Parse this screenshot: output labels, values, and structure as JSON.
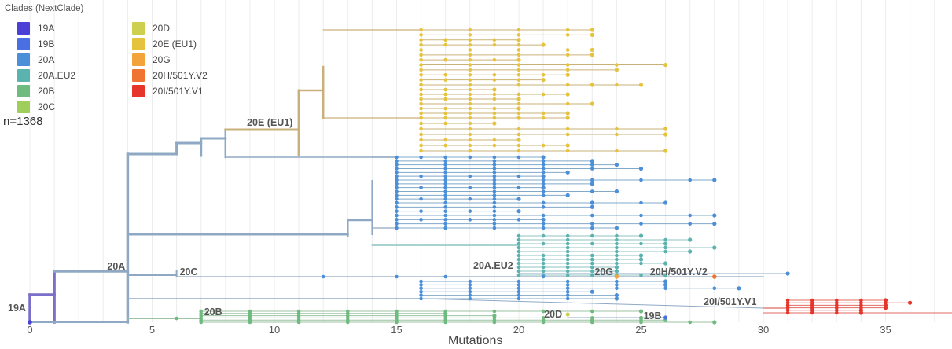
{
  "chart_data": {
    "type": "phylogenetic-tree",
    "title": "",
    "xlabel": "Mutations",
    "ylabel": "",
    "xlim": [
      0,
      38
    ],
    "x_ticks": [
      0,
      5,
      10,
      15,
      20,
      25,
      30,
      35
    ],
    "grid": "vertical",
    "sample_size_label": "n=1368",
    "legend": {
      "title": "Clades (NextClade)",
      "placement": "top-left",
      "items": [
        {
          "name": "19A",
          "color": "#4a3fd6"
        },
        {
          "name": "19B",
          "color": "#4a6fe3"
        },
        {
          "name": "20A",
          "color": "#4a8fd8"
        },
        {
          "name": "20A.EU2",
          "color": "#5bb3b0"
        },
        {
          "name": "20B",
          "color": "#6fba7e"
        },
        {
          "name": "20C",
          "color": "#9fce5c"
        },
        {
          "name": "20D",
          "color": "#cdd04f"
        },
        {
          "name": "20E (EU1)",
          "color": "#e6c33d"
        },
        {
          "name": "20G",
          "color": "#f2a33a"
        },
        {
          "name": "20H/501Y.V2",
          "color": "#ef7431"
        },
        {
          "name": "20I/501Y.V1",
          "color": "#e6352b"
        }
      ]
    },
    "clade_labels": [
      {
        "text": "19A",
        "x": 0
      },
      {
        "text": "20A",
        "x": 4
      },
      {
        "text": "20C",
        "x": 6
      },
      {
        "text": "20B",
        "x": 7
      },
      {
        "text": "20E (EU1)",
        "x": 11
      },
      {
        "text": "20A.EU2",
        "x": 20
      },
      {
        "text": "20G",
        "x": 24
      },
      {
        "text": "20H/501Y.V2",
        "x": 28
      },
      {
        "text": "20I/501Y.V1",
        "x": 30
      },
      {
        "text": "20D",
        "x": 22
      },
      {
        "text": "19B",
        "x": 26
      }
    ],
    "clades": [
      {
        "name": "20E (EU1)",
        "color": "#e6c33d",
        "branch": "#c9b07a",
        "start_x": 16,
        "tip_max": 27
      },
      {
        "name": "20A",
        "color": "#4a8fd8",
        "branch": "#7fa8c9",
        "start_x": 15,
        "tip_max": 29
      },
      {
        "name": "20A.EU2",
        "color": "#5bb3b0",
        "branch": "#8cc3c0",
        "start_x": 20,
        "tip_max": 29
      },
      {
        "name": "20G",
        "color": "#f2a33a",
        "branch": "#7fa8c9",
        "start_x": 24,
        "tip_max": 24
      },
      {
        "name": "20H/501Y.V2",
        "color": "#ef7431",
        "branch": "#7fa8c9",
        "start_x": 28,
        "tip_max": 28
      },
      {
        "name": "20I/501Y.V1",
        "color": "#e6352b",
        "branch": "#e26b63",
        "start_x": 31,
        "tip_max": 37
      },
      {
        "name": "20B",
        "color": "#6fba7e",
        "branch": "#9dc3a2",
        "start_x": 7,
        "tip_max": 28
      },
      {
        "name": "20C",
        "color": "#9fce5c",
        "branch": "#7fa8c9",
        "start_x": 6,
        "tip_max": 31
      },
      {
        "name": "20D",
        "color": "#cdd04f",
        "branch": "#9dc3a2",
        "start_x": 22,
        "tip_max": 22
      },
      {
        "name": "19B",
        "color": "#4a6fe3",
        "branch": "#7fa8c9",
        "start_x": 26,
        "tip_max": 26
      }
    ]
  }
}
